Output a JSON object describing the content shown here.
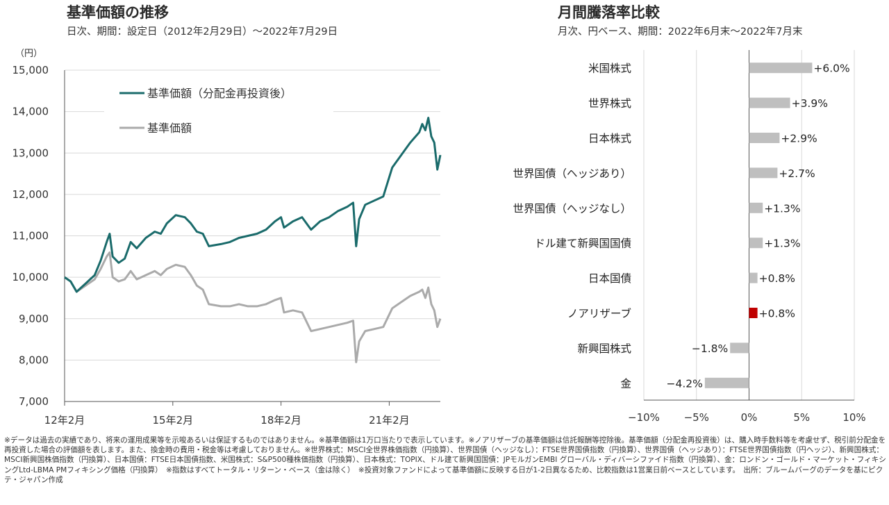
{
  "left_panel": {
    "title": "基準価額の推移",
    "subtitle": "日次、期間：設定日（2012年2月29日）～2022年7月29日"
  },
  "right_panel": {
    "title": "月間騰落率比較",
    "subtitle": "月次、円ベース、期間：2022年6月末～2022年7月末"
  },
  "notes": "※データは過去の実績であり、将来の運用成果等を示唆あるいは保証するものではありません。※基準価額は1万口当たりで表示しています。※ノアリザーブの基準価額は信託報酬等控除後。基準価額（分配金再投資後）は、購入時手数料等を考慮せず、税引前分配金を再投資した場合の評価額を表します。また、換金時の費用・税金等は考慮しておりません。※世界株式：MSCI全世界株価指数（円換算）、世界国債（ヘッジなし）：FTSE世界国債指数（円換算）、世界国債（ヘッジあり）：FTSE世界国債指数（円ヘッジ）、新興国株式：MSCI新興国株価指数（円換算）、日本国債：FTSE日本国債指数、米国株式：S&P500種株価指数（円換算）、日本株式：TOPIX、ドル建て新興国国債：JPモルガンEMBI グローバル・ディバーシファイド指数（円換算）、金：ロンドン・ゴールド・マーケット・フィキシングLtd-LBMA PMフィキシング価格（円換算）　※指数はすべてトータル・リターン・ベース（金は除く）　※投資対象ファンドによって基準価額に反映する日が1-2日異なるため、比較指数は1営業日前ベースとしています。　出所：ブルームバーグのデータを基にピクテ・ジャパン作成",
  "chart_data": [
    {
      "type": "line",
      "unit_label": "（円）",
      "ylim": [
        7000,
        15000
      ],
      "yticks": [
        "7,000",
        "8,000",
        "9,000",
        "10,000",
        "11,000",
        "12,000",
        "13,000",
        "14,000",
        "15,000"
      ],
      "xlim": [
        "2012-02-29",
        "2022-07-29"
      ],
      "xticks": [
        {
          "date": "2012-02",
          "label": "12年2月"
        },
        {
          "date": "2015-02",
          "label": "15年2月"
        },
        {
          "date": "2018-02",
          "label": "18年2月"
        },
        {
          "date": "2021-02",
          "label": "21年2月"
        }
      ],
      "grid": true,
      "legend_position": "top-left",
      "series": [
        {
          "name": "基準価額（分配金再投資後）",
          "color": "#1a6b6b",
          "points": [
            [
              "2012-02",
              10000
            ],
            [
              "2012-04",
              9900
            ],
            [
              "2012-06",
              9650
            ],
            [
              "2012-09",
              9850
            ],
            [
              "2012-12",
              10050
            ],
            [
              "2013-02",
              10400
            ],
            [
              "2013-04",
              10850
            ],
            [
              "2013-05",
              11050
            ],
            [
              "2013-06",
              10500
            ],
            [
              "2013-08",
              10350
            ],
            [
              "2013-10",
              10450
            ],
            [
              "2013-12",
              10850
            ],
            [
              "2014-02",
              10700
            ],
            [
              "2014-05",
              10950
            ],
            [
              "2014-08",
              11100
            ],
            [
              "2014-10",
              11050
            ],
            [
              "2014-12",
              11300
            ],
            [
              "2015-03",
              11500
            ],
            [
              "2015-06",
              11450
            ],
            [
              "2015-08",
              11300
            ],
            [
              "2015-10",
              11100
            ],
            [
              "2015-12",
              11050
            ],
            [
              "2016-02",
              10750
            ],
            [
              "2016-06",
              10800
            ],
            [
              "2016-09",
              10850
            ],
            [
              "2016-12",
              10950
            ],
            [
              "2017-03",
              11000
            ],
            [
              "2017-06",
              11050
            ],
            [
              "2017-09",
              11150
            ],
            [
              "2017-12",
              11350
            ],
            [
              "2018-02",
              11450
            ],
            [
              "2018-03",
              11200
            ],
            [
              "2018-06",
              11350
            ],
            [
              "2018-09",
              11450
            ],
            [
              "2018-12",
              11150
            ],
            [
              "2019-03",
              11350
            ],
            [
              "2019-06",
              11450
            ],
            [
              "2019-09",
              11600
            ],
            [
              "2019-12",
              11700
            ],
            [
              "2020-02",
              11800
            ],
            [
              "2020-03",
              10750
            ],
            [
              "2020-04",
              11400
            ],
            [
              "2020-06",
              11750
            ],
            [
              "2020-09",
              11850
            ],
            [
              "2020-12",
              11950
            ],
            [
              "2021-03",
              12650
            ],
            [
              "2021-06",
              12950
            ],
            [
              "2021-09",
              13250
            ],
            [
              "2021-12",
              13500
            ],
            [
              "2022-01",
              13700
            ],
            [
              "2022-02",
              13550
            ],
            [
              "2022-03",
              13850
            ],
            [
              "2022-04",
              13400
            ],
            [
              "2022-05",
              13250
            ],
            [
              "2022-06",
              12600
            ],
            [
              "2022-07",
              12950
            ]
          ]
        },
        {
          "name": "基準価額",
          "color": "#aaaaaa",
          "points": [
            [
              "2012-02",
              10000
            ],
            [
              "2012-04",
              9900
            ],
            [
              "2012-06",
              9650
            ],
            [
              "2012-09",
              9800
            ],
            [
              "2012-12",
              9950
            ],
            [
              "2013-02",
              10200
            ],
            [
              "2013-04",
              10500
            ],
            [
              "2013-05",
              10600
            ],
            [
              "2013-06",
              10000
            ],
            [
              "2013-08",
              9900
            ],
            [
              "2013-10",
              9950
            ],
            [
              "2013-12",
              10150
            ],
            [
              "2014-02",
              9950
            ],
            [
              "2014-05",
              10050
            ],
            [
              "2014-08",
              10150
            ],
            [
              "2014-10",
              10050
            ],
            [
              "2014-12",
              10200
            ],
            [
              "2015-03",
              10300
            ],
            [
              "2015-06",
              10250
            ],
            [
              "2015-08",
              10050
            ],
            [
              "2015-10",
              9800
            ],
            [
              "2015-12",
              9700
            ],
            [
              "2016-02",
              9350
            ],
            [
              "2016-06",
              9300
            ],
            [
              "2016-09",
              9300
            ],
            [
              "2016-12",
              9350
            ],
            [
              "2017-03",
              9300
            ],
            [
              "2017-06",
              9300
            ],
            [
              "2017-09",
              9350
            ],
            [
              "2017-12",
              9450
            ],
            [
              "2018-02",
              9500
            ],
            [
              "2018-03",
              9150
            ],
            [
              "2018-06",
              9200
            ],
            [
              "2018-09",
              9150
            ],
            [
              "2018-12",
              8700
            ],
            [
              "2019-03",
              8750
            ],
            [
              "2019-06",
              8800
            ],
            [
              "2019-09",
              8850
            ],
            [
              "2019-12",
              8900
            ],
            [
              "2020-02",
              8950
            ],
            [
              "2020-03",
              7950
            ],
            [
              "2020-04",
              8450
            ],
            [
              "2020-06",
              8700
            ],
            [
              "2020-09",
              8750
            ],
            [
              "2020-12",
              8800
            ],
            [
              "2021-03",
              9250
            ],
            [
              "2021-06",
              9400
            ],
            [
              "2021-09",
              9550
            ],
            [
              "2021-12",
              9650
            ],
            [
              "2022-01",
              9700
            ],
            [
              "2022-02",
              9500
            ],
            [
              "2022-03",
              9750
            ],
            [
              "2022-04",
              9350
            ],
            [
              "2022-05",
              9200
            ],
            [
              "2022-06",
              8800
            ],
            [
              "2022-07",
              9000
            ]
          ]
        }
      ]
    },
    {
      "type": "bar",
      "orientation": "horizontal",
      "xlim": [
        -10,
        10
      ],
      "xticks": [
        "-10%",
        "-5%",
        "0%",
        "5%",
        "10%"
      ],
      "grid": true,
      "categories": [
        "米国株式",
        "世界株式",
        "日本株式",
        "世界国債（ヘッジあり）",
        "世界国債（ヘッジなし）",
        "ドル建て新興国国債",
        "日本国債",
        "ノアリザーブ",
        "新興国株式",
        "金"
      ],
      "values": [
        6.0,
        3.9,
        2.9,
        2.7,
        1.3,
        1.3,
        0.8,
        0.8,
        -1.8,
        -4.2
      ],
      "labels": [
        "+6.0%",
        "+3.9%",
        "+2.9%",
        "+2.7%",
        "+1.3%",
        "+1.3%",
        "+0.8%",
        "+0.8%",
        "-1.8%",
        "-4.2%"
      ],
      "colors": {
        "default": "#bfbfbf",
        "highlight": "#c00000"
      },
      "highlight_category": "ノアリザーブ"
    }
  ]
}
